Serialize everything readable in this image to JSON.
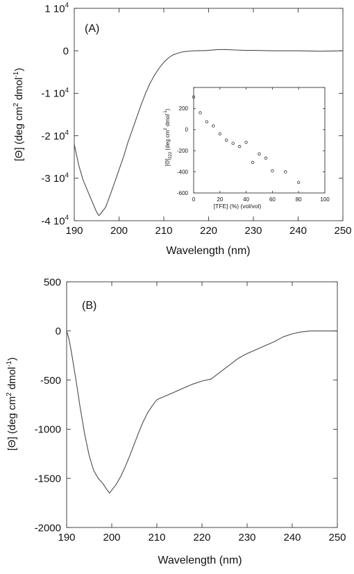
{
  "chart_data": [
    {
      "id": "A",
      "type": "line",
      "panel_label": "(A)",
      "xlabel": "Wavelength (nm)",
      "ylabel_main": "[Θ] (deg cm",
      "ylabel_sup1": "2",
      "ylabel_mid": " dmol",
      "ylabel_sup2": "-1",
      "ylabel_end": ")",
      "xlim": [
        190,
        250
      ],
      "ylim": [
        -40000,
        10000
      ],
      "xticks": [
        190,
        200,
        210,
        220,
        230,
        240,
        250
      ],
      "xtick_labels": [
        "190",
        "200",
        "210",
        "220",
        "230",
        "240",
        "250"
      ],
      "yticks": [
        10000,
        0,
        -10000,
        -20000,
        -30000,
        -40000
      ],
      "ytick_labels": [
        {
          "base": "1 10",
          "exp": "4"
        },
        {
          "base": "0",
          "exp": ""
        },
        {
          "base": "-1 10",
          "exp": "4"
        },
        {
          "base": "-2 10",
          "exp": "4"
        },
        {
          "base": "-3 10",
          "exp": "4"
        },
        {
          "base": "-4 10",
          "exp": "4"
        }
      ],
      "series": [
        {
          "x": [
            190,
            191,
            192,
            193,
            194,
            195,
            195.5,
            196,
            197,
            198,
            199,
            200,
            201,
            202,
            203,
            204,
            205,
            206,
            207,
            208,
            209,
            210,
            211,
            212,
            213,
            214,
            215,
            216,
            217,
            218,
            219,
            220,
            222,
            224,
            226,
            228,
            230,
            235,
            240,
            245,
            250
          ],
          "y": [
            -22000,
            -27000,
            -30500,
            -33000,
            -35500,
            -38000,
            -38800,
            -38200,
            -36800,
            -34000,
            -31000,
            -28000,
            -25000,
            -21500,
            -18500,
            -15500,
            -12500,
            -9800,
            -7500,
            -5600,
            -4000,
            -2700,
            -1700,
            -1000,
            -600,
            -300,
            -150,
            -50,
            0,
            50,
            50,
            100,
            300,
            300,
            200,
            100,
            100,
            0,
            0,
            -100,
            0
          ]
        }
      ]
    },
    {
      "id": "A-inset",
      "type": "scatter",
      "xlabel": "[TFE] (%) (vol/vol)",
      "ylabel_main": "[Θ]",
      "ylabel_sub": "222",
      "ylabel_rest": " (deg cm",
      "ylabel_sup1": "2",
      "ylabel_mid": " dmol",
      "ylabel_sup2": "-1",
      "ylabel_end": ")",
      "xlim": [
        0,
        100
      ],
      "ylim": [
        -600,
        400
      ],
      "xticks": [
        0,
        20,
        40,
        60,
        80,
        100
      ],
      "xtick_labels": [
        "0",
        "20",
        "40",
        "60",
        "80",
        "100"
      ],
      "yticks": [
        400,
        200,
        0,
        -200,
        -400,
        -600
      ],
      "ytick_labels": [
        "",
        "200",
        "0",
        "-200",
        "-400",
        "-600"
      ],
      "series": [
        {
          "x": [
            0,
            5,
            10,
            15,
            20,
            25,
            30,
            35,
            40,
            45,
            50,
            55,
            60,
            70,
            80
          ],
          "y": [
            310,
            160,
            75,
            35,
            -40,
            -100,
            -130,
            -160,
            -120,
            -310,
            -230,
            -270,
            -390,
            -400,
            -500
          ]
        }
      ]
    },
    {
      "id": "B",
      "type": "line",
      "panel_label": "(B)",
      "xlabel": "Wavelength (nm)",
      "ylabel_main": "[Θ] (deg cm",
      "ylabel_sup1": "2",
      "ylabel_mid": " dmol",
      "ylabel_sup2": "-1",
      "ylabel_end": ")",
      "xlim": [
        190,
        250
      ],
      "ylim": [
        -2000,
        500
      ],
      "xticks": [
        190,
        200,
        210,
        220,
        230,
        240,
        250
      ],
      "xtick_labels": [
        "190",
        "200",
        "210",
        "220",
        "230",
        "240",
        "250"
      ],
      "yticks": [
        500,
        0,
        -500,
        -1000,
        -1500,
        -2000
      ],
      "ytick_labels": [
        "500",
        "0",
        "-500",
        "-1000",
        "-1500",
        "-2000"
      ],
      "series": [
        {
          "x": [
            190,
            190.5,
            191,
            192,
            193,
            194,
            195,
            196,
            197,
            198,
            199,
            199.5,
            200,
            201,
            202,
            203,
            204,
            205,
            206,
            207,
            208,
            209,
            210,
            212,
            214,
            216,
            218,
            220,
            222,
            224,
            226,
            228,
            230,
            232,
            234,
            236,
            238,
            240,
            242,
            244,
            246,
            248,
            250
          ],
          "y": [
            0,
            -80,
            -200,
            -480,
            -780,
            -1050,
            -1270,
            -1420,
            -1500,
            -1550,
            -1620,
            -1650,
            -1620,
            -1560,
            -1480,
            -1380,
            -1270,
            -1150,
            -1030,
            -920,
            -830,
            -760,
            -700,
            -660,
            -620,
            -580,
            -540,
            -510,
            -490,
            -420,
            -350,
            -280,
            -230,
            -190,
            -150,
            -110,
            -60,
            -30,
            -10,
            0,
            0,
            0,
            0
          ]
        }
      ]
    }
  ]
}
